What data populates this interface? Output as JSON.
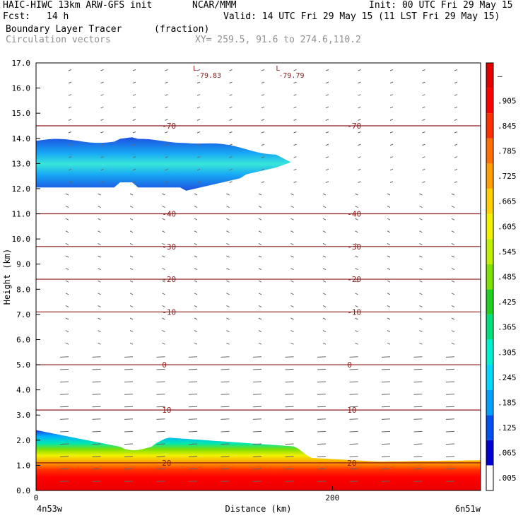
{
  "header": {
    "model": "HAIC-HIWC 13km ARW-GFS init",
    "org": "NCAR/MMM",
    "init": "Init: 00 UTC Fri 29 May 15",
    "fcst_label": "Fcst:",
    "fcst_value": "14 h",
    "valid": "Valid: 14 UTC Fri 29 May 15 (11 LST Fri 29 May 15)",
    "field": "Boundary Layer Tracer",
    "field_units": "(fraction)",
    "vectors": "Circulation vectors",
    "xy": "XY= 259.5, 91.6 to 274.6,110.2"
  },
  "chart_data": {
    "type": "heatmap",
    "title": "Boundary Layer Tracer (fraction)",
    "xlabel": "Distance (km)",
    "ylabel": "Height (km)",
    "xlim": [
      0,
      300
    ],
    "ylim": [
      0,
      17
    ],
    "x_ticks": [
      0,
      200
    ],
    "y_ticks": [
      "0.0",
      "1.0",
      "2.0",
      "3.0",
      "4.0",
      "5.0",
      "6.0",
      "7.0",
      "8.0",
      "9.0",
      "10.0",
      "11.0",
      "12.0",
      "13.0",
      "14.0",
      "15.0",
      "16.0",
      "17.0"
    ],
    "x_endpoints": [
      "4n53w",
      "6n51w"
    ],
    "colorbar_labels": [
      ".005",
      ".065",
      ".125",
      ".185",
      ".245",
      ".305",
      ".365",
      ".425",
      ".485",
      ".545",
      ".605",
      ".665",
      ".725",
      ".785",
      ".845",
      ".905",
      "–"
    ],
    "colorbar_colors": [
      "#ffffff",
      "#0000d0",
      "#0050f0",
      "#00a0ff",
      "#00d8ff",
      "#00f0d0",
      "#00e080",
      "#20d020",
      "#80e000",
      "#c0f000",
      "#f0f000",
      "#ffd000",
      "#ffa000",
      "#ff7000",
      "#ff3000",
      "#ff0000",
      "#e00000"
    ],
    "temperature_contours": [
      {
        "label": "-70",
        "height_km": 14.5
      },
      {
        "label": "-40",
        "height_km": 11.0
      },
      {
        "label": "-30",
        "height_km": 9.7
      },
      {
        "label": "-20",
        "height_km": 8.4
      },
      {
        "label": "-10",
        "height_km": 7.1
      },
      {
        "label": "0",
        "height_km": 5.0
      },
      {
        "label": "10",
        "height_km": 3.2
      },
      {
        "label": "20",
        "height_km": 1.1
      }
    ],
    "minima": [
      {
        "marker": "L",
        "label": "-79.83",
        "x_km": 103
      },
      {
        "marker": "L",
        "label": "-79.79",
        "x_km": 159
      }
    ],
    "tracer_layers": [
      {
        "name": "upper",
        "x_range_km": [
          0,
          172
        ],
        "height_km": [
          12.0,
          13.9
        ],
        "max_fraction": 0.15
      },
      {
        "name": "boundary",
        "x_range_km": [
          0,
          300
        ],
        "height_km": [
          0.0,
          2.4
        ],
        "max_fraction": 1.0
      }
    ]
  }
}
